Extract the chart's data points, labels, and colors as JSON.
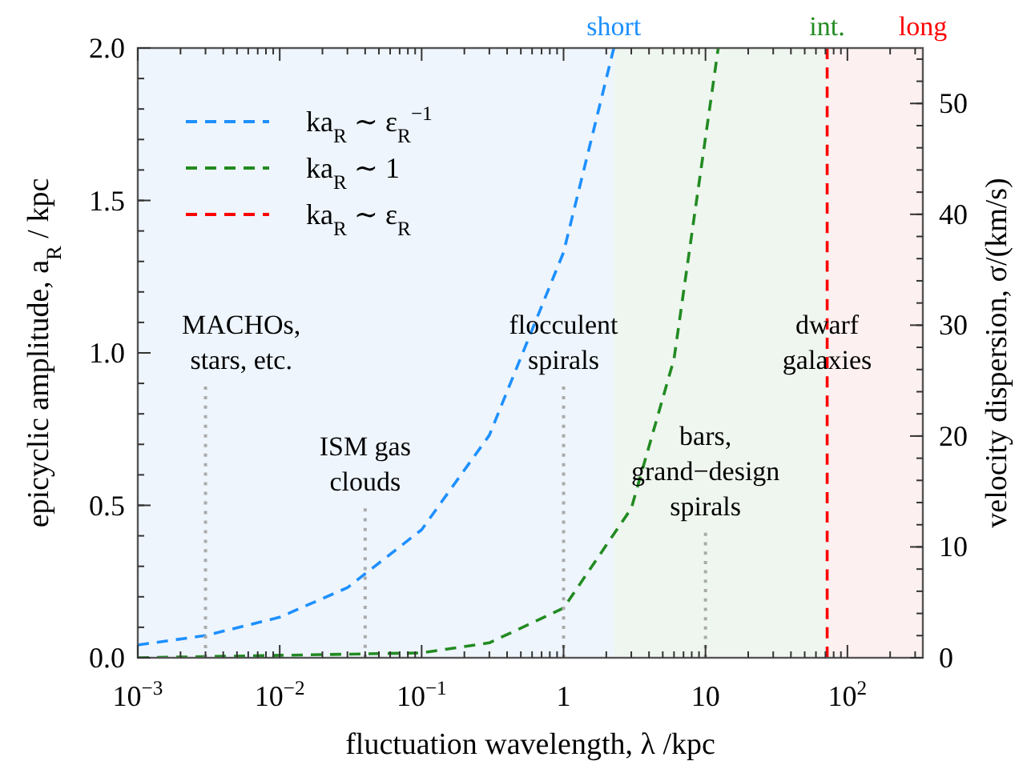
{
  "chart_data": {
    "type": "line",
    "xlabel": "fluctuation wavelength, λ /kpc",
    "ylabel": "epicyclic amplitude, a$_{R}$ / kpc",
    "y2label": "velocity dispersion, σ/(km/s)",
    "log": "x",
    "xlim": [
      0.001,
      340
    ],
    "xticks": [
      {
        "value": 0.001,
        "label": "10$^{−3}$"
      },
      {
        "value": 0.01,
        "label": "10$^{−2}$"
      },
      {
        "value": 0.1,
        "label": "10$^{−1}$"
      },
      1,
      10,
      {
        "value": 100,
        "label": "10$^{2}$"
      }
    ],
    "ylim": [
      0,
      2
    ],
    "yticks": [
      {
        "value": 0,
        "label": "0.0"
      },
      0.5,
      {
        "value": 1,
        "label": "1.0"
      },
      1.5,
      {
        "value": 2,
        "label": "2.0"
      }
    ],
    "y2lim": [
      0,
      55
    ],
    "y2ticks": [
      0,
      10,
      20,
      30,
      40,
      50
    ],
    "grid": false,
    "legend": "top left",
    "line_style": "dashed",
    "marker": "none",
    "series": [
      {
        "name": "ka$_{R}$ ∼ ε$_{R}$$^{−1}$",
        "color": "#1e90ff",
        "x": [
          0.001,
          0.003,
          0.01,
          0.03,
          0.1,
          0.3,
          1,
          2.26
        ],
        "values": [
          0.042,
          0.073,
          0.133,
          0.23,
          0.42,
          0.73,
          1.33,
          2.0
        ]
      },
      {
        "name": "ka$_{R}$ ∼ 1",
        "color": "#228b22",
        "x": [
          0.001,
          0.1,
          0.3,
          1,
          3,
          6,
          12.3
        ],
        "values": [
          0,
          0.016,
          0.049,
          0.163,
          0.49,
          0.98,
          2.0
        ]
      },
      {
        "name": "ka$_{R}$ ∼ ε$_{R}$",
        "color": "#ff0000",
        "x": [
          72,
          72
        ],
        "values": [
          0,
          2
        ]
      },
      {
        "color": "#aaaaaa",
        "line_style": "dotted",
        "x": [
          0.003,
          0.003
        ],
        "values": [
          0,
          0.89
        ]
      },
      {
        "color": "#aaaaaa",
        "line_style": "dotted",
        "x": [
          0.04,
          0.04
        ],
        "values": [
          0,
          0.49
        ]
      },
      {
        "color": "#aaaaaa",
        "line_style": "dotted",
        "x": [
          1,
          1
        ],
        "values": [
          0,
          0.89
        ]
      },
      {
        "color": "#aaaaaa",
        "line_style": "dotted",
        "x": [
          10,
          10
        ],
        "values": [
          0,
          0.41
        ]
      }
    ],
    "bands": [
      {
        "axis": "x",
        "from": 0.001,
        "to": 2.26,
        "label": "short",
        "color": "#eef5fd"
      },
      {
        "axis": "x",
        "from": 2.26,
        "to": 72,
        "label": "int.",
        "color": "#eff6ef"
      },
      {
        "axis": "x",
        "from": 72,
        "to": 340,
        "label": "long",
        "color": "#fdf0f0"
      }
    ],
    "annotations": [
      {
        "text": "MACHOs,\nstars, etc.",
        "x": 0.003,
        "y": 0.89
      },
      {
        "text": "ISM gas\nclouds",
        "x": 0.04,
        "y": 0.49
      },
      {
        "text": "flocculent\nspirals",
        "x": 1,
        "y": 0.89
      },
      {
        "text": "bars,\ngrand−design\nspirals",
        "x": 10,
        "y": 0.41
      },
      {
        "text": "dwarf\ngalaxies",
        "x": 72,
        "y": 0.89
      }
    ]
  }
}
